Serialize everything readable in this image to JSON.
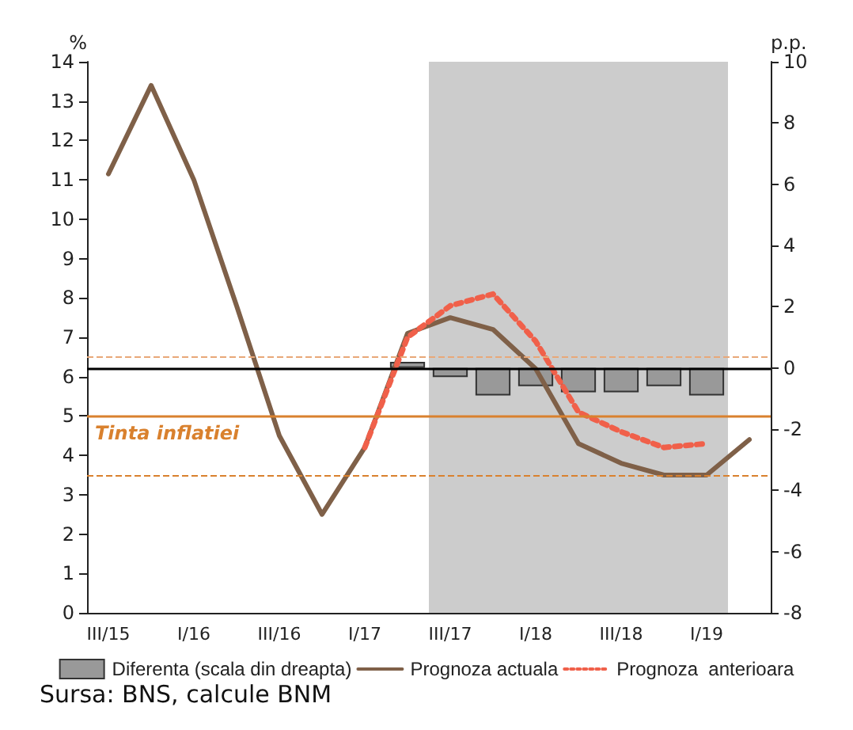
{
  "chart_data": {
    "type": "line",
    "ylabel": "%",
    "y2label": "p.p.",
    "categories": [
      "III/15",
      null,
      "I/16",
      null,
      "III/16",
      null,
      "I/17",
      null,
      "III/17",
      null,
      "I/18",
      null,
      "III/18",
      null,
      "I/19",
      null
    ],
    "series": [
      {
        "name": "Diferenta (scala din dreapta)",
        "type": "bar",
        "axis": "y2",
        "color": "#999999",
        "values": [
          null,
          null,
          null,
          null,
          null,
          null,
          null,
          0.2,
          -0.3,
          -0.9,
          -0.6,
          -0.8,
          -0.8,
          -0.6,
          -0.9,
          null
        ]
      },
      {
        "name": "Prognoza actuala",
        "color": "#7f6048",
        "line_style": "solid",
        "values": [
          11.15,
          13.4,
          11.0,
          7.8,
          4.5,
          2.5,
          4.2,
          7.1,
          7.5,
          7.2,
          6.2,
          4.3,
          3.8,
          3.5,
          3.5,
          4.4
        ]
      },
      {
        "name": "Prognoza  anterioara",
        "color": "#f0604a",
        "line_style": "dotted",
        "values": [
          null,
          null,
          null,
          null,
          null,
          null,
          4.2,
          7.0,
          7.8,
          8.1,
          6.9,
          5.1,
          4.6,
          4.2,
          4.3,
          null
        ]
      }
    ],
    "ylim": [
      0,
      14
    ],
    "yticks": [
      0,
      1,
      2,
      3,
      4,
      5,
      6,
      7,
      8,
      9,
      10,
      11,
      12,
      13,
      14
    ],
    "y2lim": [
      -8,
      10
    ],
    "y2ticks": [
      -8,
      -6,
      -4,
      -2,
      0,
      2,
      4,
      6,
      8,
      10
    ],
    "ref_lines": [
      {
        "axis": "y",
        "value": 5,
        "label": "Tinta inflatiei",
        "color": "#d9812e",
        "line_style": "solid"
      },
      {
        "axis": "y",
        "value": 6.5,
        "color": "#e8a878",
        "line_style": "dashed"
      },
      {
        "axis": "y",
        "value": 3.5,
        "color": "#d9812e",
        "line_style": "dashed"
      },
      {
        "axis": "y2",
        "value": 0,
        "color": "#000000",
        "line_style": "solid"
      }
    ],
    "bands": [
      {
        "axis": "x",
        "from": "III/17",
        "to": "I/19",
        "color": "#cccccc"
      }
    ],
    "grid": false,
    "legend": "bottom",
    "marker": "none",
    "annotations": [
      "Sursa: BNS, calcule BNM"
    ]
  }
}
